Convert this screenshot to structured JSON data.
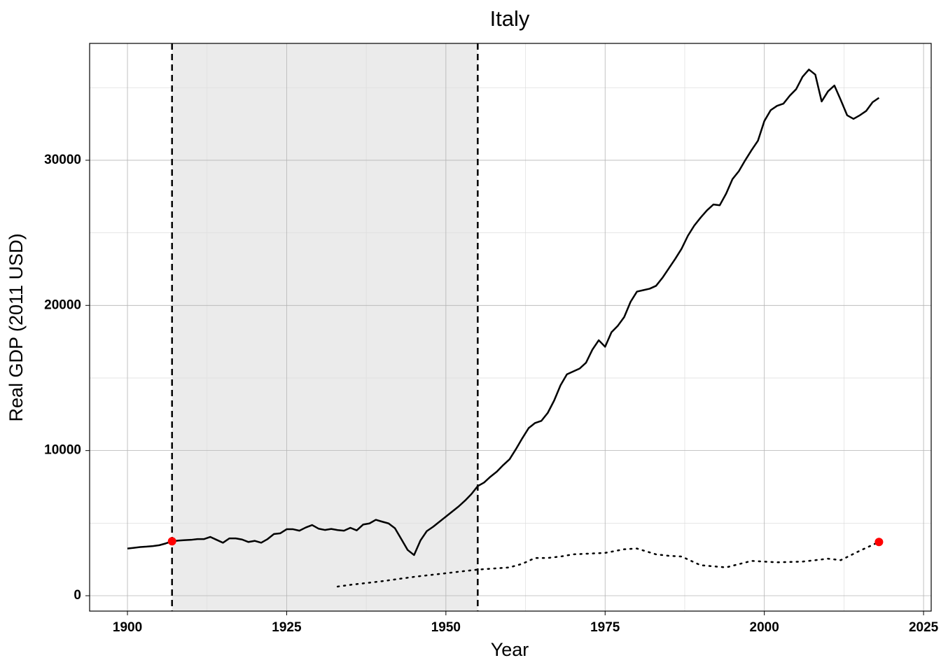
{
  "chart_data": {
    "type": "line",
    "title": "Italy",
    "x_label": "Year",
    "y_label": "Real GDP (2011 USD)",
    "xlim": [
      1894.06,
      2026.2
    ],
    "xticks": [
      1900,
      1925,
      1950,
      1975,
      2000,
      2025
    ],
    "ylim": [
      -1060,
      38050
    ],
    "yticks": [
      0,
      10000,
      20000,
      30000
    ],
    "grid": true,
    "shade": [
      1907,
      1955
    ],
    "series": [
      {
        "color": "#000000",
        "style": "solid",
        "x": [
          1900,
          1901,
          1902,
          1903,
          1904,
          1905,
          1906,
          1907,
          1908,
          1909,
          1910,
          1911,
          1912,
          1913,
          1914,
          1915,
          1916,
          1917,
          1918,
          1919,
          1920,
          1921,
          1922,
          1923,
          1924,
          1925,
          1926,
          1927,
          1928,
          1929,
          1930,
          1931,
          1932,
          1933,
          1934,
          1935,
          1936,
          1937,
          1938,
          1939,
          1940,
          1941,
          1942,
          1943,
          1944,
          1945,
          1946,
          1947,
          1948,
          1949,
          1950,
          1951,
          1952,
          1953,
          1954,
          1955,
          1956,
          1957,
          1958,
          1959,
          1960,
          1961,
          1962,
          1963,
          1964,
          1965,
          1966,
          1967,
          1968,
          1969,
          1970,
          1971,
          1972,
          1973,
          1974,
          1975,
          1976,
          1977,
          1978,
          1979,
          1980,
          1981,
          1982,
          1983,
          1984,
          1985,
          1986,
          1987,
          1988,
          1989,
          1990,
          1991,
          1992,
          1993,
          1994,
          1995,
          1996,
          1997,
          1998,
          1999,
          2000,
          2001,
          2002,
          2003,
          2004,
          2005,
          2006,
          2007,
          2008,
          2009,
          2010,
          2011,
          2012,
          2013,
          2014,
          2015,
          2016,
          2017,
          2018
        ],
        "values": [
          3250,
          3300,
          3350,
          3380,
          3420,
          3480,
          3600,
          3750,
          3800,
          3830,
          3850,
          3900,
          3900,
          4050,
          3850,
          3650,
          3950,
          3950,
          3870,
          3700,
          3780,
          3650,
          3900,
          4250,
          4300,
          4580,
          4580,
          4480,
          4700,
          4870,
          4620,
          4530,
          4600,
          4520,
          4480,
          4680,
          4500,
          4900,
          4980,
          5230,
          5100,
          4980,
          4650,
          3900,
          3150,
          2800,
          3800,
          4450,
          4750,
          5100,
          5450,
          5800,
          6150,
          6550,
          7000,
          7550,
          7800,
          8200,
          8550,
          9000,
          9400,
          10100,
          10850,
          11550,
          11900,
          12050,
          12600,
          13450,
          14500,
          15250,
          15450,
          15650,
          16050,
          16950,
          17600,
          17150,
          18150,
          18600,
          19200,
          20250,
          20950,
          21050,
          21150,
          21350,
          21900,
          22550,
          23200,
          23900,
          24800,
          25500,
          26050,
          26550,
          26950,
          26900,
          27700,
          28700,
          29250,
          30000,
          30700,
          31350,
          32700,
          33450,
          33750,
          33900,
          34450,
          34900,
          35750,
          36250,
          35900,
          34050,
          34750,
          35150,
          34150,
          33100,
          32850,
          33100,
          33400,
          34000,
          34300
        ]
      },
      {
        "color": "#000000",
        "style": "dotted",
        "x": [
          1933,
          1935,
          1940,
          1945,
          1950,
          1955,
          1960,
          1962,
          1964,
          1966,
          1968,
          1970,
          1975,
          1978,
          1980,
          1983,
          1985,
          1987,
          1990,
          1994,
          1998,
          2002,
          2006,
          2010,
          2012,
          2015,
          2018
        ],
        "values": [
          630,
          750,
          1000,
          1300,
          1550,
          1800,
          1950,
          2200,
          2600,
          2600,
          2700,
          2850,
          2950,
          3200,
          3250,
          2850,
          2750,
          2700,
          2100,
          1950,
          2400,
          2300,
          2350,
          2550,
          2450,
          3100,
          3700
        ]
      }
    ],
    "markers": {
      "color": "#ff0000",
      "x": [
        1907,
        2018
      ],
      "values": [
        3750,
        3700
      ]
    }
  }
}
